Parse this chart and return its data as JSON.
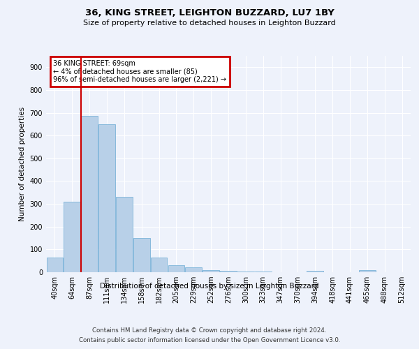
{
  "title": "36, KING STREET, LEIGHTON BUZZARD, LU7 1BY",
  "subtitle": "Size of property relative to detached houses in Leighton Buzzard",
  "xlabel": "Distribution of detached houses by size in Leighton Buzzard",
  "ylabel": "Number of detached properties",
  "footnote1": "Contains HM Land Registry data © Crown copyright and database right 2024.",
  "footnote2": "Contains public sector information licensed under the Open Government Licence v3.0.",
  "annotation_line1": "36 KING STREET: 69sqm",
  "annotation_line2": "← 4% of detached houses are smaller (85)",
  "annotation_line3": "96% of semi-detached houses are larger (2,221) →",
  "bar_labels": [
    "40sqm",
    "64sqm",
    "87sqm",
    "111sqm",
    "134sqm",
    "158sqm",
    "182sqm",
    "205sqm",
    "229sqm",
    "252sqm",
    "276sqm",
    "300sqm",
    "323sqm",
    "347sqm",
    "370sqm",
    "394sqm",
    "418sqm",
    "441sqm",
    "465sqm",
    "488sqm",
    "512sqm"
  ],
  "bar_values": [
    65,
    310,
    685,
    650,
    330,
    150,
    65,
    30,
    20,
    10,
    5,
    2,
    2,
    0,
    0,
    5,
    0,
    0,
    10,
    0,
    0
  ],
  "bar_color": "#b8d0e8",
  "bar_edge_color": "#6aaad4",
  "vline_x": 1.5,
  "vline_color": "#cc0000",
  "annotation_box_color": "#cc0000",
  "background_color": "#eef2fb",
  "ylim": [
    0,
    950
  ],
  "yticks": [
    0,
    100,
    200,
    300,
    400,
    500,
    600,
    700,
    800,
    900
  ]
}
